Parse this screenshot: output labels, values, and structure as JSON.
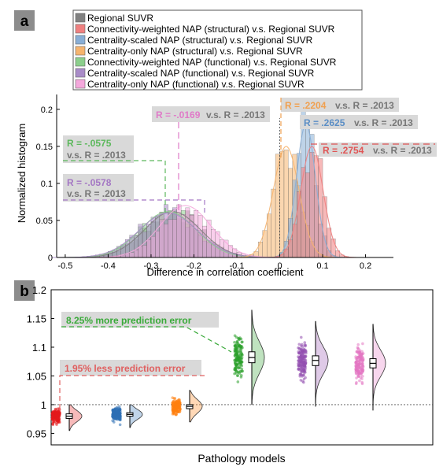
{
  "panels": {
    "a": {
      "label": "a",
      "legend": [
        {
          "name": "Regional SUVR",
          "color": "#808080"
        },
        {
          "name": "Connectivity-weighted NAP (structural) v.s. Regional SUVR",
          "color": "#f08080"
        },
        {
          "name": "Centrality-scaled NAP (structural) v.s. Regional SUVR",
          "color": "#88aed6"
        },
        {
          "name": "Centrality-only NAP (structural) v.s. Regional SUVR",
          "color": "#f6b46e"
        },
        {
          "name": "Connectivity-weighted NAP (functional) v.s. Regional SUVR",
          "color": "#8ccf8c"
        },
        {
          "name": "Centrality-scaled NAP (functional) v.s. Regional SUVR",
          "color": "#a98cc8"
        },
        {
          "name": "Centrality-only NAP (functional) v.s. Regional SUVR",
          "color": "#f4a8dc"
        }
      ],
      "annotations": [
        {
          "r": "R = -.0575",
          "vs": "v.s. R = .2013",
          "color": "#5cb85c"
        },
        {
          "r": "R = -.0578",
          "vs": "v.s. R = .2013",
          "color": "#a477c4"
        },
        {
          "r": "R = -.0169",
          "vs": "v.s. R = .2013",
          "color": "#e07ac8"
        },
        {
          "r": "R = .2204",
          "vs": "v.s. R = .2013",
          "color": "#f0a050"
        },
        {
          "r": "R = .2625",
          "vs": "v.s. R = .2013",
          "color": "#5b8ec5"
        },
        {
          "r": "R = .2754",
          "vs": "v.s. R = .2013",
          "color": "#e05555"
        }
      ]
    },
    "b": {
      "label": "b",
      "annotations": [
        {
          "text": "8.25% more prediction error",
          "color": "#3aaa3a"
        },
        {
          "text": "1.95% less prediction error",
          "color": "#e06060"
        }
      ]
    }
  },
  "chart_data": [
    {
      "type": "histogram",
      "xlabel": "Difference in correlation coefficient",
      "ylabel": "Normalized histogram",
      "xlim": [
        -0.52,
        0.265
      ],
      "ylim": [
        0,
        0.22
      ],
      "xticks": [
        "-0.5",
        "-0.4",
        "-0.3",
        "-0.2",
        "-0.1",
        "0",
        "0.1",
        "0.2"
      ],
      "xtick_values": [
        -0.5,
        -0.4,
        -0.3,
        -0.2,
        -0.1,
        0,
        0.1,
        0.2
      ],
      "yticks": [
        "0",
        "0.05",
        "0.1",
        "0.15",
        "0.2"
      ],
      "ytick_values": [
        0,
        0.05,
        0.1,
        0.15,
        0.2
      ],
      "series": [
        {
          "name": "Regional SUVR",
          "mean": -0.25,
          "sd": 0.065,
          "peak": 0.062,
          "color": "#808080"
        },
        {
          "name": "Connectivity-weighted NAP (structural) v.s. Regional SUVR",
          "mean": 0.075,
          "sd": 0.026,
          "peak": 0.15,
          "color": "#f08080"
        },
        {
          "name": "Centrality-scaled NAP (structural) v.s. Regional SUVR",
          "mean": 0.061,
          "sd": 0.022,
          "peak": 0.18,
          "color": "#88aed6"
        },
        {
          "name": "Centrality-only NAP (structural) v.s. Regional SUVR",
          "mean": 0.015,
          "sd": 0.03,
          "peak": 0.15,
          "color": "#f6b46e"
        },
        {
          "name": "Connectivity-weighted NAP (functional) v.s. Regional SUVR",
          "mean": -0.26,
          "sd": 0.065,
          "peak": 0.062,
          "color": "#8ccf8c"
        },
        {
          "name": "Centrality-scaled NAP (functional) v.s. Regional SUVR",
          "mean": -0.26,
          "sd": 0.068,
          "peak": 0.06,
          "color": "#a98cc8"
        },
        {
          "name": "Centrality-only NAP (functional) v.s. Regional SUVR",
          "mean": -0.22,
          "sd": 0.06,
          "peak": 0.07,
          "color": "#f4a8dc"
        }
      ],
      "reference_line_x": 0
    },
    {
      "type": "raincloud",
      "xlabel": "Pathology models",
      "ylabel": "",
      "ylim": [
        0.93,
        1.2
      ],
      "yticks": [
        "0.95",
        "1",
        "1.05",
        "1.1",
        "1.15",
        "1.2"
      ],
      "ytick_values": [
        0.95,
        1.0,
        1.05,
        1.1,
        1.15,
        1.2
      ],
      "reference_line_y": 1.0,
      "groups": [
        {
          "color": "#e41a1c",
          "median": 0.98,
          "q1": 0.976,
          "q3": 0.984,
          "min": 0.955,
          "max": 1.0,
          "sd": 0.009
        },
        {
          "color": "#2e6fb5",
          "median": 0.983,
          "q1": 0.98,
          "q3": 0.986,
          "min": 0.96,
          "max": 1.0,
          "sd": 0.008
        },
        {
          "color": "#ff7f0e",
          "median": 0.997,
          "q1": 0.993,
          "q3": 1.0,
          "min": 0.97,
          "max": 1.025,
          "sd": 0.011
        },
        {
          "color": "#2ca02c",
          "median": 1.082,
          "q1": 1.073,
          "q3": 1.092,
          "min": 1.0,
          "max": 1.165,
          "sd": 0.025
        },
        {
          "color": "#9450b0",
          "median": 1.077,
          "q1": 1.068,
          "q3": 1.085,
          "min": 0.997,
          "max": 1.145,
          "sd": 0.022
        },
        {
          "color": "#e377c2",
          "median": 1.072,
          "q1": 1.064,
          "q3": 1.08,
          "min": 0.99,
          "max": 1.14,
          "sd": 0.021
        }
      ]
    }
  ]
}
